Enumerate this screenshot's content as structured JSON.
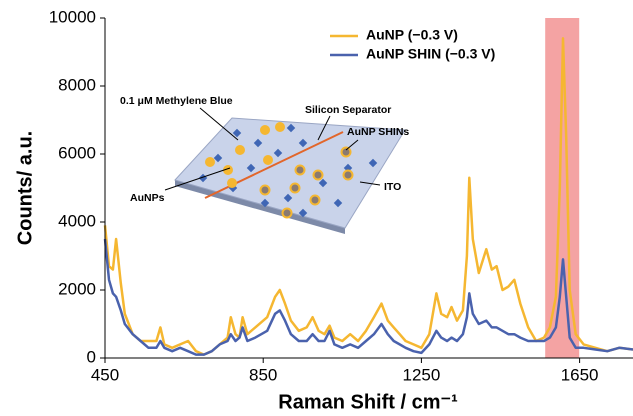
{
  "chart_data": {
    "type": "line",
    "x_label": "Raman Shift / cm⁻¹",
    "y_label": "Counts/ a.u.",
    "xlim": [
      450,
      1785
    ],
    "ylim": [
      0,
      10000
    ],
    "xticks": [
      450,
      850,
      1250,
      1650
    ],
    "yticks": [
      0,
      2000,
      4000,
      6000,
      8000,
      10000
    ],
    "legend": "upper right",
    "highlight": {
      "xrange": [
        1563,
        1649
      ],
      "color": "#f4a3a3"
    },
    "x": [
      450,
      460,
      470,
      478,
      490,
      500,
      520,
      540,
      560,
      580,
      590,
      600,
      620,
      640,
      660,
      680,
      700,
      720,
      740,
      760,
      768,
      780,
      790,
      798,
      810,
      830,
      860,
      880,
      892,
      905,
      920,
      940,
      960,
      975,
      990,
      1005,
      1018,
      1030,
      1050,
      1070,
      1090,
      1110,
      1130,
      1149,
      1165,
      1180,
      1195,
      1210,
      1230,
      1250,
      1270,
      1288,
      1300,
      1315,
      1326,
      1340,
      1355,
      1365,
      1371,
      1380,
      1395,
      1414,
      1428,
      1440,
      1455,
      1470,
      1485,
      1500,
      1520,
      1540,
      1560,
      1575,
      1590,
      1600,
      1608,
      1616,
      1625,
      1640,
      1660,
      1690,
      1720,
      1750,
      1785
    ],
    "series": [
      {
        "name": "AuNP (−0.3 V)",
        "color": "#f5b731",
        "values": [
          3900,
          2700,
          2600,
          3500,
          2200,
          1300,
          700,
          500,
          500,
          500,
          900,
          400,
          300,
          400,
          500,
          200,
          100,
          200,
          400,
          600,
          1200,
          700,
          600,
          1200,
          700,
          900,
          1200,
          1800,
          2000,
          1600,
          1100,
          800,
          900,
          1200,
          800,
          700,
          950,
          600,
          500,
          700,
          500,
          800,
          1200,
          1600,
          1100,
          900,
          700,
          500,
          400,
          300,
          700,
          1900,
          1300,
          1200,
          1500,
          1100,
          1400,
          3000,
          5300,
          3500,
          2500,
          3200,
          2600,
          2700,
          2000,
          2100,
          2300,
          1600,
          900,
          500,
          600,
          900,
          1800,
          5000,
          9400,
          6500,
          2000,
          700,
          400,
          300,
          200,
          300,
          250
        ]
      },
      {
        "name": "AuNP SHIN (−0.3 V)",
        "color": "#4a62ad",
        "values": [
          3500,
          2300,
          1900,
          1800,
          1400,
          1000,
          700,
          500,
          300,
          300,
          500,
          300,
          200,
          300,
          200,
          100,
          100,
          200,
          400,
          500,
          700,
          500,
          600,
          900,
          500,
          600,
          800,
          1300,
          1400,
          1100,
          700,
          500,
          500,
          700,
          500,
          500,
          800,
          400,
          300,
          400,
          300,
          500,
          700,
          1000,
          700,
          500,
          400,
          300,
          200,
          150,
          400,
          800,
          600,
          500,
          600,
          500,
          700,
          1200,
          1900,
          1300,
          1000,
          1100,
          900,
          900,
          800,
          700,
          700,
          600,
          500,
          500,
          500,
          600,
          900,
          1800,
          2900,
          1800,
          600,
          300,
          300,
          250,
          200,
          300,
          250
        ]
      }
    ],
    "inset": {
      "labels": [
        "0.1 μM Methylene Blue",
        "Silicon Separator",
        "AuNP SHINs",
        "AuNPs",
        "ITO"
      ]
    }
  }
}
